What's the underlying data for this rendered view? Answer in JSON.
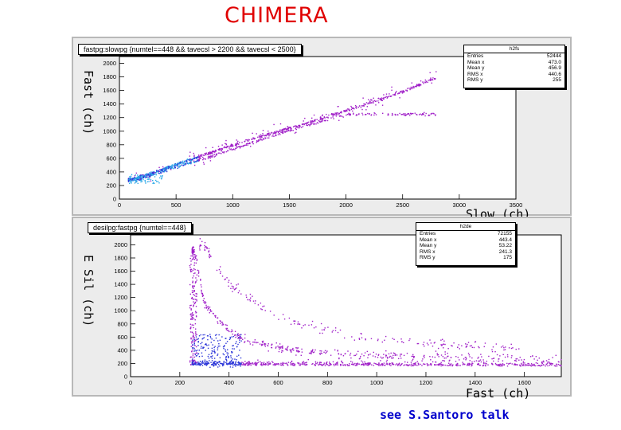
{
  "slide_title": "CHIMERA",
  "footnote": "see S.Santoro talk",
  "chart_data": [
    {
      "type": "scatter",
      "title": "fastpg:slowpg {numtel==448 && tavecsl > 2200 && tavecsl < 2500}",
      "xlabel": "Slow (ch)",
      "ylabel": "Fast (ch)",
      "xlim": [
        0,
        3500
      ],
      "ylim": [
        0,
        2100
      ],
      "xticks": [
        0,
        500,
        1000,
        1500,
        2000,
        2500,
        3000,
        3500
      ],
      "yticks": [
        0,
        200,
        400,
        600,
        800,
        1000,
        1200,
        1400,
        1600,
        1800,
        2000
      ],
      "stats": {
        "name": "h2fs",
        "rows": [
          {
            "label": "Entries",
            "value": "52444"
          },
          {
            "label": "Mean x",
            "value": "473.0"
          },
          {
            "label": "Mean y",
            "value": "456.9"
          },
          {
            "label": "RMS x",
            "value": "440.6"
          },
          {
            "label": "RMS y",
            "value": "255"
          }
        ]
      },
      "series": [
        {
          "x": [
            0,
            150,
            300,
            500,
            800,
            1100,
            1500,
            2000,
            2500,
            2800
          ],
          "y": [
            250,
            310,
            390,
            510,
            680,
            850,
            1040,
            1300,
            1580,
            1790
          ]
        },
        {
          "x": [
            150,
            300,
            500,
            800,
            1100,
            1500,
            2000
          ],
          "y": [
            280,
            360,
            470,
            620,
            790,
            1010,
            1250
          ]
        }
      ],
      "colors": {
        "dense": "#2aa8e8",
        "mid": "#2b35d8",
        "sparse": "#a020c8"
      }
    },
    {
      "type": "scatter",
      "title": "desilpg:fastpg {numtel==448}",
      "xlabel": "Fast (ch)",
      "ylabel": "E Sil (ch)",
      "xlim": [
        0,
        1750
      ],
      "ylim": [
        0,
        2150
      ],
      "xticks": [
        0,
        200,
        400,
        600,
        800,
        1000,
        1200,
        1400,
        1600
      ],
      "yticks": [
        0,
        200,
        400,
        600,
        800,
        1000,
        1200,
        1400,
        1600,
        1800,
        2000
      ],
      "stats": {
        "name": "h2de",
        "rows": [
          {
            "label": "Entries",
            "value": "72155"
          },
          {
            "label": "Mean x",
            "value": "443.4"
          },
          {
            "label": "Mean y",
            "value": "53.22"
          },
          {
            "label": "RMS x",
            "value": "241.3"
          },
          {
            "label": "RMS y",
            "value": "175"
          }
        ]
      },
      "series": [
        {
          "x": [
            260,
            300,
            400,
            500,
            700,
            1000,
            1300,
            1600,
            1750
          ],
          "y": [
            1900,
            1100,
            700,
            500,
            380,
            320,
            290,
            270,
            260
          ]
        },
        {
          "x": [
            300,
            400,
            600,
            900,
            1200,
            1600
          ],
          "y": [
            2000,
            1400,
            900,
            620,
            500,
            420
          ]
        },
        {
          "x": [
            250,
            500,
            1000,
            1500,
            1750
          ],
          "y": [
            180,
            170,
            165,
            160,
            160
          ]
        }
      ],
      "colors": {
        "dense": "#2b35d8",
        "sparse": "#a020c8"
      }
    }
  ]
}
